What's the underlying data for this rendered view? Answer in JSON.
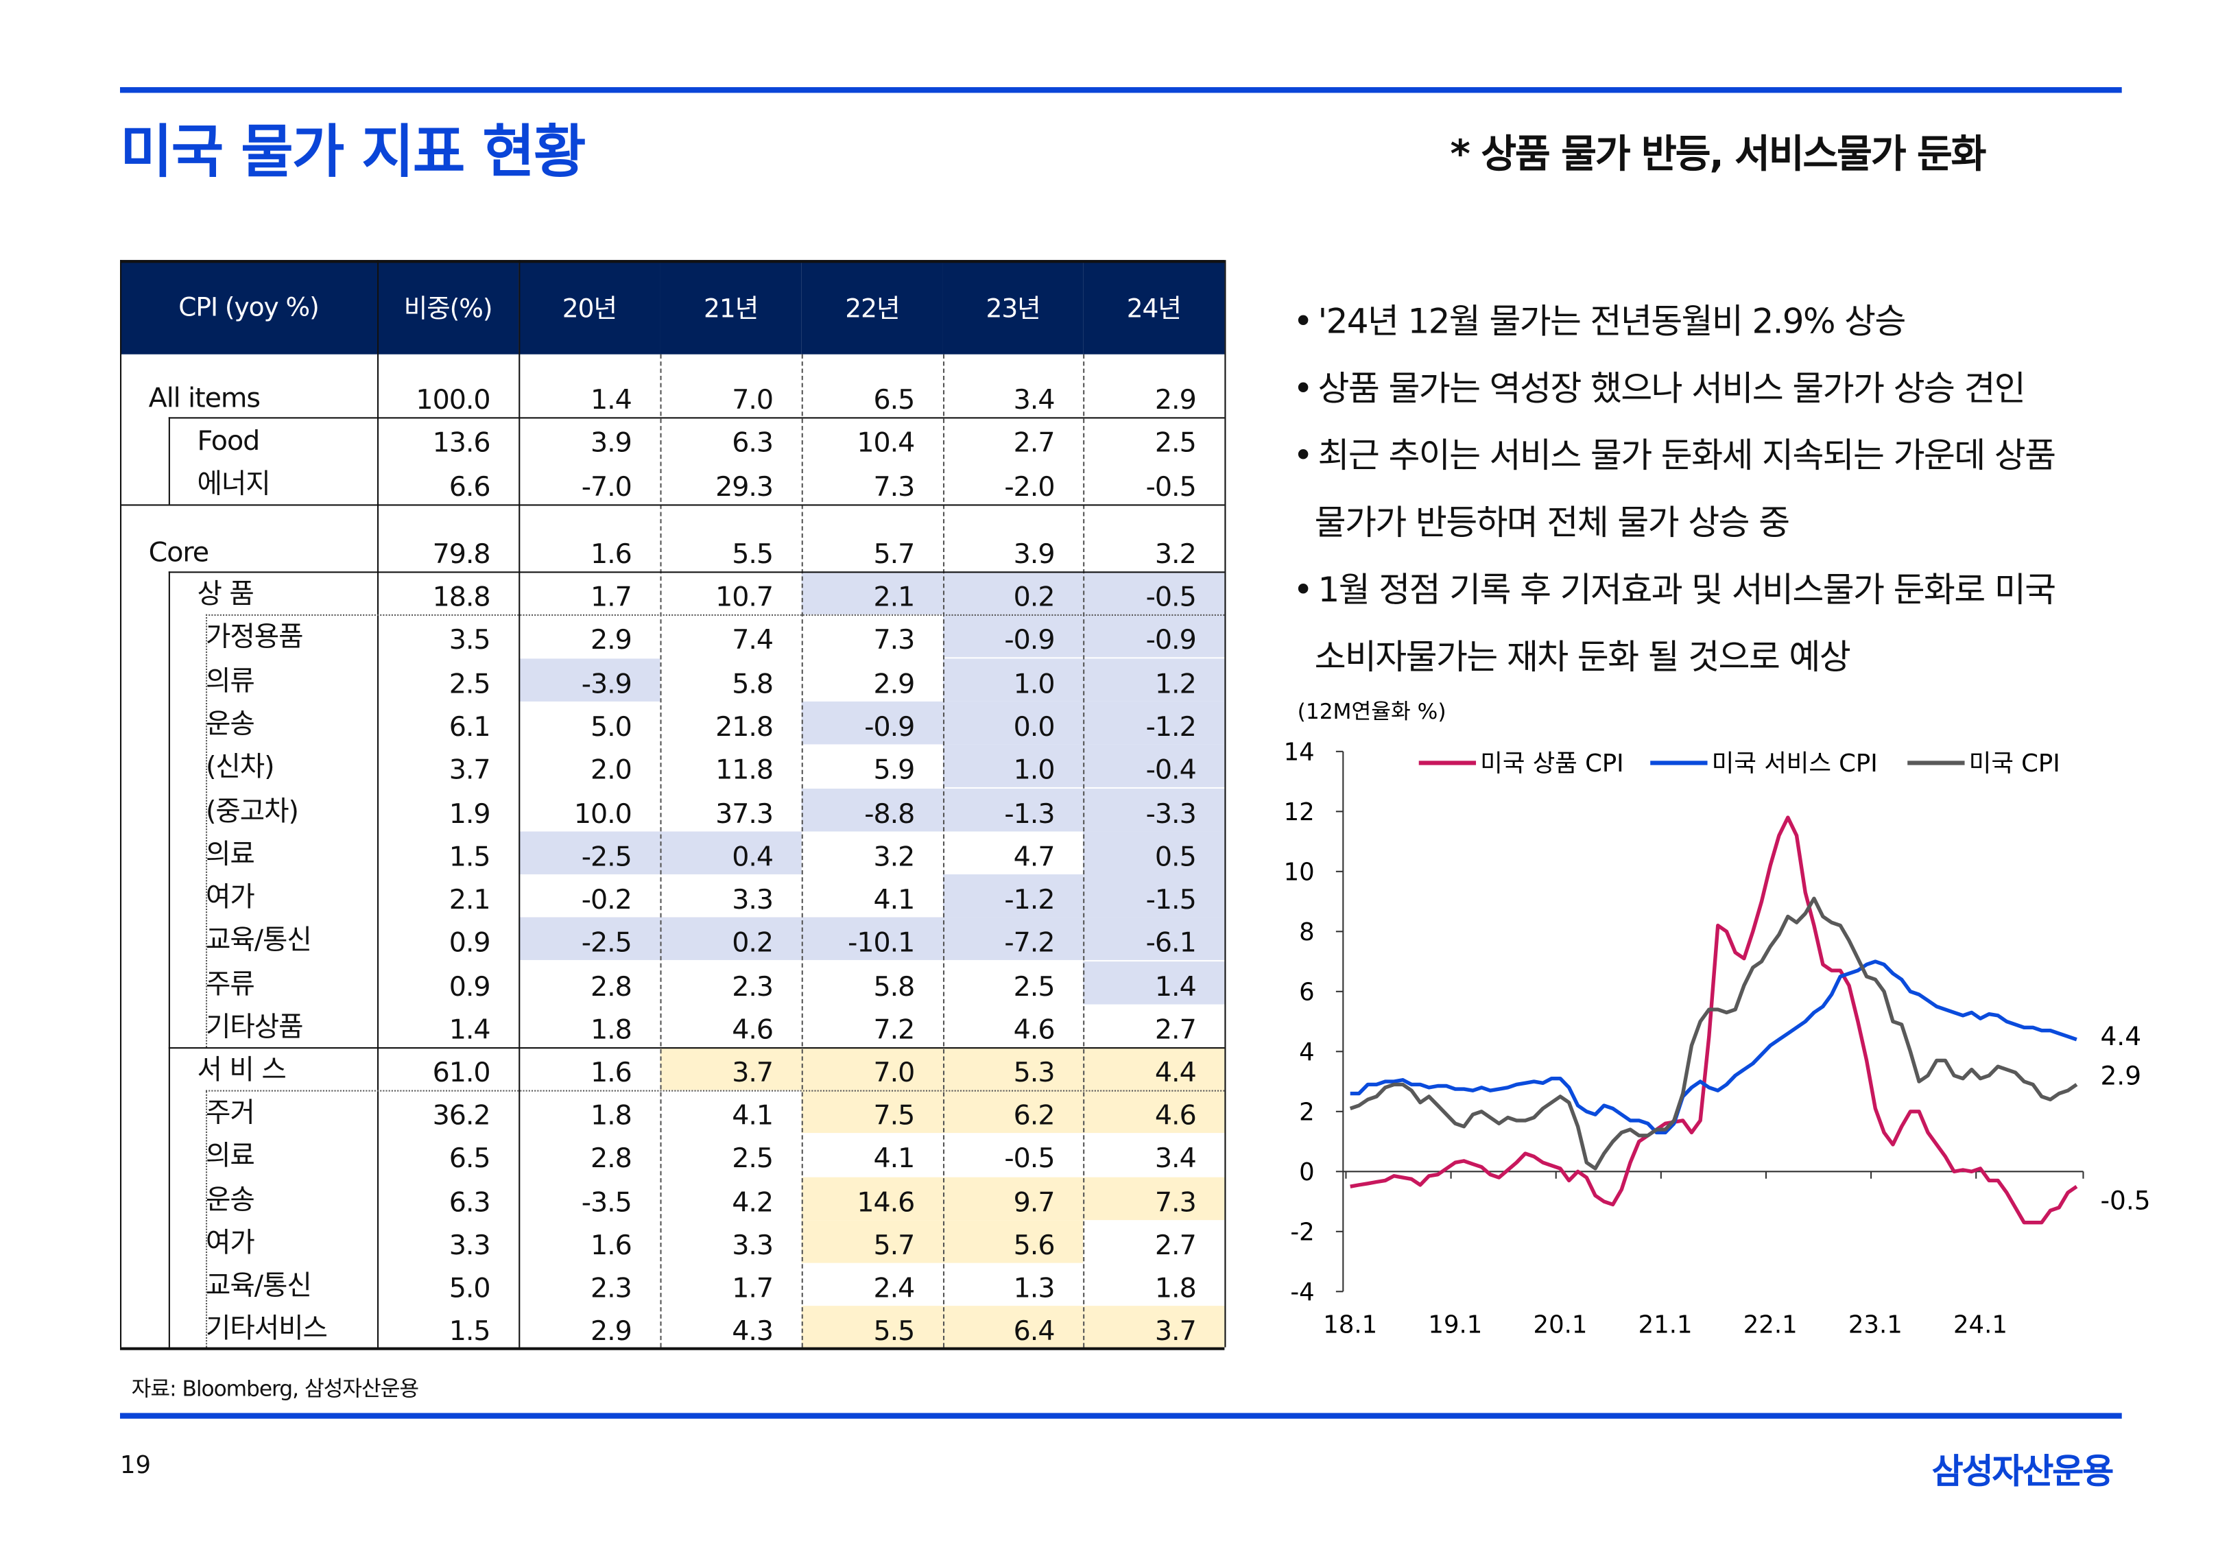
{
  "header": {
    "title": "미국 물가 지표 현황",
    "subtitle": "* 상품 물가 반등, 서비스물가 둔화"
  },
  "table": {
    "columns": [
      "CPI (yoy %)",
      "비중(%)",
      "20년",
      "21년",
      "22년",
      "23년",
      "24년"
    ],
    "rows": [
      {
        "label": "All items",
        "weight": "100.0",
        "values": [
          "1.4",
          "7.0",
          "6.5",
          "3.4",
          "2.9"
        ],
        "hl": [
          "",
          "",
          "",
          "",
          ""
        ]
      },
      {
        "label": "Food",
        "weight": "13.6",
        "values": [
          "3.9",
          "6.3",
          "10.4",
          "2.7",
          "2.5"
        ],
        "hl": [
          "",
          "",
          "",
          "",
          ""
        ]
      },
      {
        "label": "에너지",
        "weight": "6.6",
        "values": [
          "-7.0",
          "29.3",
          "7.3",
          "-2.0",
          "-0.5"
        ],
        "hl": [
          "",
          "",
          "",
          "",
          ""
        ]
      },
      {
        "label": "Core",
        "weight": "79.8",
        "values": [
          "1.6",
          "5.5",
          "5.7",
          "3.9",
          "3.2"
        ],
        "hl": [
          "",
          "",
          "",
          "",
          ""
        ]
      },
      {
        "label": "상   품",
        "weight": "18.8",
        "values": [
          "1.7",
          "10.7",
          "2.1",
          "0.2",
          "-0.5"
        ],
        "hl": [
          "",
          "",
          "b",
          "b",
          "b"
        ]
      },
      {
        "label": "가정용품",
        "weight": "3.5",
        "values": [
          "2.9",
          "7.4",
          "7.3",
          "-0.9",
          "-0.9"
        ],
        "hl": [
          "",
          "",
          "",
          "b",
          "b"
        ]
      },
      {
        "label": "의류",
        "weight": "2.5",
        "values": [
          "-3.9",
          "5.8",
          "2.9",
          "1.0",
          "1.2"
        ],
        "hl": [
          "b",
          "",
          "",
          "b",
          "b"
        ]
      },
      {
        "label": "운송",
        "weight": "6.1",
        "values": [
          "5.0",
          "21.8",
          "-0.9",
          "0.0",
          "-1.2"
        ],
        "hl": [
          "",
          "",
          "b",
          "b",
          "b"
        ]
      },
      {
        "label": "(신차)",
        "weight": "3.7",
        "values": [
          "2.0",
          "11.8",
          "5.9",
          "1.0",
          "-0.4"
        ],
        "hl": [
          "",
          "",
          "",
          "b",
          "b"
        ]
      },
      {
        "label": "(중고차)",
        "weight": "1.9",
        "values": [
          "10.0",
          "37.3",
          "-8.8",
          "-1.3",
          "-3.3"
        ],
        "hl": [
          "",
          "",
          "b",
          "b",
          "b"
        ]
      },
      {
        "label": "의료",
        "weight": "1.5",
        "values": [
          "-2.5",
          "0.4",
          "3.2",
          "4.7",
          "0.5"
        ],
        "hl": [
          "b",
          "b",
          "",
          "",
          "b"
        ]
      },
      {
        "label": "여가",
        "weight": "2.1",
        "values": [
          "-0.2",
          "3.3",
          "4.1",
          "-1.2",
          "-1.5"
        ],
        "hl": [
          "",
          "",
          "",
          "b",
          "b"
        ]
      },
      {
        "label": "교육/통신",
        "weight": "0.9",
        "values": [
          "-2.5",
          "0.2",
          "-10.1",
          "-7.2",
          "-6.1"
        ],
        "hl": [
          "b",
          "b",
          "b",
          "b",
          "b"
        ]
      },
      {
        "label": "주류",
        "weight": "0.9",
        "values": [
          "2.8",
          "2.3",
          "5.8",
          "2.5",
          "1.4"
        ],
        "hl": [
          "",
          "",
          "",
          "",
          "b"
        ]
      },
      {
        "label": "기타상품",
        "weight": "1.4",
        "values": [
          "1.8",
          "4.6",
          "7.2",
          "4.6",
          "2.7"
        ],
        "hl": [
          "",
          "",
          "",
          "",
          ""
        ]
      },
      {
        "label": "서 비 스",
        "weight": "61.0",
        "values": [
          "1.6",
          "3.7",
          "7.0",
          "5.3",
          "4.4"
        ],
        "hl": [
          "",
          "y",
          "y",
          "y",
          "y"
        ]
      },
      {
        "label": "주거",
        "weight": "36.2",
        "values": [
          "1.8",
          "4.1",
          "7.5",
          "6.2",
          "4.6"
        ],
        "hl": [
          "",
          "",
          "y",
          "y",
          "y"
        ]
      },
      {
        "label": "의료",
        "weight": "6.5",
        "values": [
          "2.8",
          "2.5",
          "4.1",
          "-0.5",
          "3.4"
        ],
        "hl": [
          "",
          "",
          "",
          "",
          ""
        ]
      },
      {
        "label": "운송",
        "weight": "6.3",
        "values": [
          "-3.5",
          "4.2",
          "14.6",
          "9.7",
          "7.3"
        ],
        "hl": [
          "",
          "",
          "y",
          "y",
          "y"
        ]
      },
      {
        "label": "여가",
        "weight": "3.3",
        "values": [
          "1.6",
          "3.3",
          "5.7",
          "5.6",
          "2.7"
        ],
        "hl": [
          "",
          "",
          "y",
          "y",
          ""
        ]
      },
      {
        "label": "교육/통신",
        "weight": "5.0",
        "values": [
          "2.3",
          "1.7",
          "2.4",
          "1.3",
          "1.8"
        ],
        "hl": [
          "",
          "",
          "",
          "",
          ""
        ]
      },
      {
        "label": "기타서비스",
        "weight": "1.5",
        "values": [
          "2.9",
          "4.3",
          "5.5",
          "6.4",
          "3.7"
        ],
        "hl": [
          "",
          "",
          "y",
          "y",
          "y"
        ]
      }
    ]
  },
  "bullets": [
    "'24년 12월 물가는 전년동월비 2.9% 상승",
    "상품 물가는 역성장 했으나 서비스 물가가 상승 견인",
    "최근 추이는 서비스 물가 둔화세 지속되는 가운데 상품",
    "물가가 반등하며 전체 물가 상승 중",
    "1월 정점 기록 후 기저효과 및 서비스물가 둔화로 미국",
    "소비자물가는 재차 둔화 될 것으로 예상"
  ],
  "chart_data": {
    "type": "line",
    "unit_label": "(12M연율화 %)",
    "ylim": [
      -4,
      14
    ],
    "yticks": [
      "14",
      "12",
      "10",
      "8",
      "6",
      "4",
      "2",
      "0",
      "-2",
      "-4"
    ],
    "xticks": [
      "18.1",
      "19.1",
      "20.1",
      "21.1",
      "22.1",
      "23.1",
      "24.1"
    ],
    "x_start": "2018-01",
    "x_end": "2024-12",
    "frequency": "monthly",
    "legend": "top",
    "series": [
      {
        "name": "미국 상품 CPI",
        "color": "#c8175d",
        "end_label": "-0.5",
        "values": [
          -0.5,
          -0.45,
          -0.4,
          -0.35,
          -0.3,
          -0.15,
          -0.2,
          -0.25,
          -0.45,
          -0.15,
          -0.1,
          0.1,
          0.3,
          0.35,
          0.25,
          0.15,
          -0.1,
          -0.2,
          0.05,
          0.3,
          0.6,
          0.5,
          0.3,
          0.2,
          0.1,
          -0.3,
          0,
          -0.2,
          -0.8,
          -1.0,
          -1.1,
          -0.6,
          0.3,
          1.0,
          1.2,
          1.4,
          1.6,
          1.65,
          1.7,
          1.3,
          1.7,
          4.5,
          8.2,
          8.0,
          7.3,
          7.1,
          8.0,
          9.0,
          10.2,
          11.2,
          11.8,
          11.2,
          9.3,
          8.2,
          6.9,
          6.7,
          6.7,
          6.2,
          5.0,
          3.7,
          2.1,
          1.3,
          0.9,
          1.5,
          2.0,
          2.0,
          1.3,
          0.9,
          0.5,
          0.0,
          0.05,
          0.0,
          0.1,
          -0.3,
          -0.3,
          -0.7,
          -1.2,
          -1.7,
          -1.7,
          -1.7,
          -1.3,
          -1.2,
          -0.7,
          -0.5
        ]
      },
      {
        "name": "미국 서비스 CPI",
        "color": "#0a4bdc",
        "end_label": "4.4",
        "values": [
          2.6,
          2.6,
          2.9,
          2.9,
          3.0,
          3.0,
          3.05,
          2.9,
          2.9,
          2.8,
          2.85,
          2.85,
          2.75,
          2.75,
          2.7,
          2.8,
          2.7,
          2.75,
          2.8,
          2.9,
          2.95,
          3.0,
          2.95,
          3.1,
          3.1,
          2.8,
          2.2,
          2.0,
          1.9,
          2.2,
          2.1,
          1.9,
          1.7,
          1.7,
          1.6,
          1.3,
          1.3,
          1.6,
          2.5,
          2.8,
          3.0,
          2.8,
          2.7,
          2.9,
          3.2,
          3.4,
          3.6,
          3.9,
          4.2,
          4.4,
          4.6,
          4.8,
          5.0,
          5.3,
          5.5,
          5.9,
          6.5,
          6.6,
          6.7,
          6.9,
          7.0,
          6.9,
          6.6,
          6.4,
          6.0,
          5.9,
          5.7,
          5.5,
          5.4,
          5.3,
          5.2,
          5.3,
          5.1,
          5.25,
          5.2,
          5.0,
          4.9,
          4.8,
          4.8,
          4.7,
          4.7,
          4.6,
          4.5,
          4.4
        ]
      },
      {
        "name": "미국 CPI",
        "color": "#595959",
        "end_label": "2.9",
        "values": [
          2.1,
          2.2,
          2.4,
          2.5,
          2.8,
          2.9,
          2.9,
          2.7,
          2.3,
          2.5,
          2.2,
          1.9,
          1.6,
          1.5,
          1.9,
          2.0,
          1.8,
          1.6,
          1.8,
          1.7,
          1.7,
          1.8,
          2.1,
          2.3,
          2.5,
          2.3,
          1.5,
          0.3,
          0.1,
          0.6,
          1.0,
          1.3,
          1.4,
          1.2,
          1.2,
          1.4,
          1.4,
          1.7,
          2.6,
          4.2,
          5.0,
          5.4,
          5.4,
          5.3,
          5.4,
          6.2,
          6.8,
          7.0,
          7.5,
          7.9,
          8.5,
          8.3,
          8.6,
          9.1,
          8.5,
          8.3,
          8.2,
          7.7,
          7.1,
          6.5,
          6.4,
          6.0,
          5.0,
          4.9,
          4.0,
          3.0,
          3.2,
          3.7,
          3.7,
          3.2,
          3.1,
          3.4,
          3.1,
          3.2,
          3.5,
          3.4,
          3.3,
          3.0,
          2.9,
          2.5,
          2.4,
          2.6,
          2.7,
          2.9
        ]
      }
    ]
  },
  "footer": {
    "source": "자료: Bloomberg, 삼성자산운용",
    "page": "19",
    "logo": "삼성자산운용"
  }
}
